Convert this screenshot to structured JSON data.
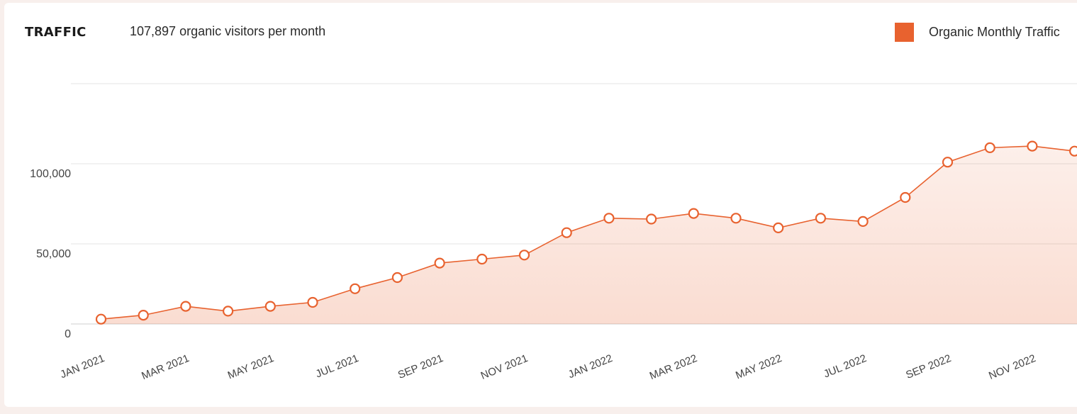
{
  "header": {
    "title": "TRAFFIC",
    "subtitle": "107,897 organic visitors per month"
  },
  "colors": {
    "accent": "#e8622f",
    "gridline": "#e4e4e4"
  },
  "chart_data": {
    "type": "area",
    "title": "TRAFFIC",
    "subtitle": "107,897 organic visitors per month",
    "legend": {
      "placement": "top-right",
      "entries": [
        "Organic Monthly Traffic"
      ]
    },
    "grid": true,
    "x": [
      "JAN 2021",
      "FEB 2021",
      "MAR 2021",
      "APR 2021",
      "MAY 2021",
      "JUN 2021",
      "JUL 2021",
      "AUG 2021",
      "SEP 2021",
      "OCT 2021",
      "NOV 2021",
      "DEC 2021",
      "JAN 2022",
      "FEB 2022",
      "MAR 2022",
      "APR 2022",
      "MAY 2022",
      "JUN 2022",
      "JUL 2022",
      "AUG 2022",
      "SEP 2022",
      "OCT 2022",
      "NOV 2022",
      "DEC 2022"
    ],
    "x_tick_labels": [
      "JAN 2021",
      "MAR 2021",
      "MAY 2021",
      "JUL 2021",
      "SEP 2021",
      "NOV 2021",
      "JAN 2022",
      "MAR 2022",
      "MAY 2022",
      "JUL 2022",
      "SEP 2022",
      "NOV 2022"
    ],
    "series": [
      {
        "name": "Organic Monthly Traffic",
        "values": [
          3000,
          5500,
          11000,
          8000,
          11000,
          13500,
          22000,
          29000,
          38000,
          40500,
          43000,
          57000,
          66000,
          65500,
          69000,
          66000,
          60000,
          66000,
          64000,
          79000,
          101000,
          110000,
          111000,
          107897
        ]
      }
    ],
    "yticks": [
      0,
      50000,
      100000
    ],
    "ytick_labels": [
      "0",
      "50,000",
      "100,000"
    ],
    "ylim": [
      0,
      150000
    ]
  }
}
